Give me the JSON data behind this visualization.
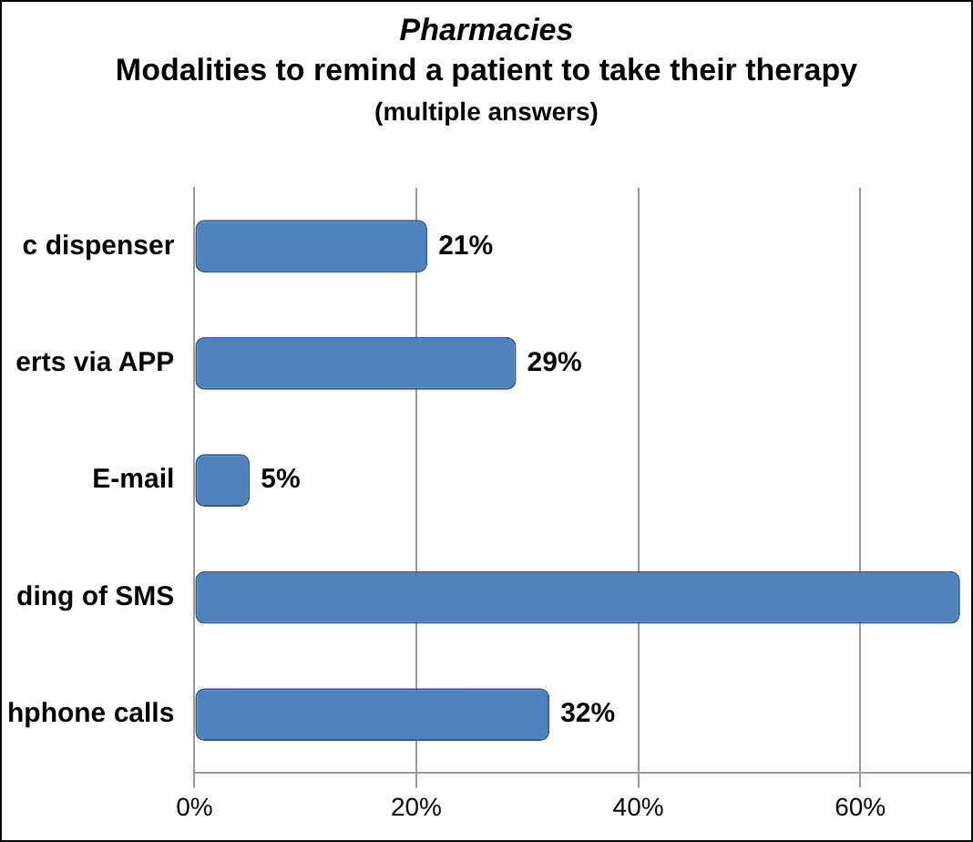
{
  "chart_data": {
    "type": "bar",
    "orientation": "horizontal",
    "title": "Pharmacies",
    "subtitle": "Modalities to remind a patient to take their therapy",
    "annotations": [
      "(multiple answers)"
    ],
    "categories": [
      "c dispenser",
      "erts via APP",
      "E-mail",
      "ding of SMS",
      "hphone calls"
    ],
    "values": [
      21,
      29,
      5,
      69,
      32
    ],
    "color": "#4f81bd",
    "value_labels": [
      "21%",
      "29%",
      "5%",
      null,
      "32%"
    ],
    "xlim": [
      0,
      70
    ],
    "xticks": [
      {
        "value": 0,
        "label": "0%"
      },
      {
        "value": 20,
        "label": "20%"
      },
      {
        "value": 40,
        "label": "40%"
      },
      {
        "value": 60,
        "label": "60%"
      }
    ],
    "grid": "x"
  }
}
